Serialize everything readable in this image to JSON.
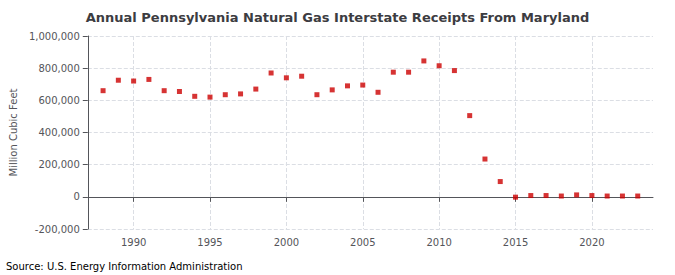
{
  "chart_data": {
    "type": "scatter",
    "title": "Annual Pennsylvania Natural Gas Interstate Receipts From Maryland",
    "ylabel": "Million Cubic Feet",
    "annotations": [
      "Source: U.S. Energy Information Administration"
    ],
    "x": [
      1988,
      1989,
      1990,
      1991,
      1992,
      1993,
      1994,
      1995,
      1996,
      1997,
      1998,
      1999,
      2000,
      2001,
      2002,
      2003,
      2004,
      2005,
      2006,
      2007,
      2008,
      2009,
      2010,
      2011,
      2012,
      2013,
      2014,
      2015,
      2016,
      2017,
      2018,
      2019,
      2020,
      2021,
      2022,
      2023
    ],
    "values": [
      660000,
      725000,
      720000,
      730000,
      660000,
      655000,
      625000,
      620000,
      635000,
      640000,
      670000,
      770000,
      740000,
      750000,
      635000,
      665000,
      690000,
      695000,
      650000,
      775000,
      775000,
      845000,
      815000,
      785000,
      505000,
      235000,
      95000,
      -2000,
      8000,
      8000,
      5000,
      12000,
      8000,
      5000,
      5000,
      5000
    ],
    "color": "#cc0000",
    "marker": "square",
    "xlim": [
      1987,
      2024
    ],
    "xticks": [
      1990,
      1995,
      2000,
      2005,
      2010,
      2015,
      2020
    ],
    "ylim": [
      -200000,
      1000000
    ],
    "yticks": [
      {
        "value": -200000,
        "label": "-200,000"
      },
      0,
      {
        "value": 200000,
        "label": "200,000"
      },
      {
        "value": 400000,
        "label": "400,000"
      },
      {
        "value": 600000,
        "label": "600,000"
      },
      {
        "value": 800000,
        "label": "800,000"
      },
      {
        "value": 1000000,
        "label": "1,000,000"
      }
    ],
    "grid": true
  }
}
